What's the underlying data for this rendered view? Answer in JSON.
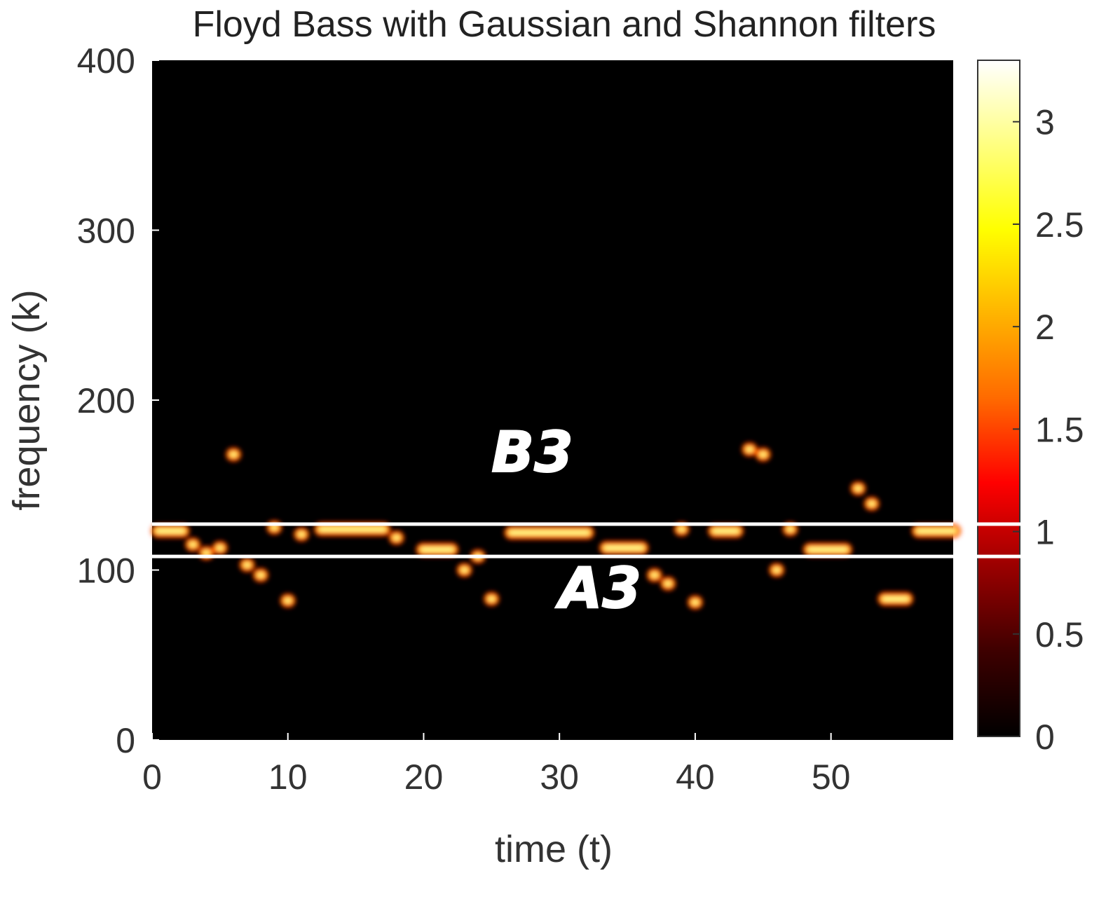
{
  "chart_data": {
    "type": "heatmap",
    "title": "Floyd Bass with Gaussian and Shannon filters",
    "xlabel": "time (t)",
    "ylabel": "frequency (k)",
    "xlim": [
      0,
      59
    ],
    "ylim": [
      0,
      400
    ],
    "xticks": [
      "0",
      "10",
      "20",
      "30",
      "40",
      "50"
    ],
    "yticks": [
      "0",
      "100",
      "200",
      "300",
      "400"
    ],
    "colorbar": {
      "colormap": "hot",
      "range": [
        0,
        3.3
      ],
      "ticks": [
        "0",
        "0.5",
        "1",
        "1.5",
        "2",
        "2.5",
        "3"
      ],
      "colors": [
        "#000000",
        "#3d0000",
        "#990000",
        "#ff0000",
        "#ff6a00",
        "#ffb400",
        "#ffff00",
        "#ffff80",
        "#ffffff"
      ]
    },
    "background_color": "#000000",
    "hot_spots": [
      {
        "t": 0.5,
        "k": 123,
        "t2": 2.2
      },
      {
        "t": 3,
        "k": 115
      },
      {
        "t": 4,
        "k": 110
      },
      {
        "t": 5,
        "k": 113
      },
      {
        "t": 6,
        "k": 168
      },
      {
        "t": 7,
        "k": 103
      },
      {
        "t": 8,
        "k": 97
      },
      {
        "t": 9,
        "k": 125
      },
      {
        "t": 10,
        "k": 82
      },
      {
        "t": 11,
        "k": 121
      },
      {
        "t": 12.5,
        "k": 124,
        "t2": 17
      },
      {
        "t": 18,
        "k": 119
      },
      {
        "t": 20,
        "k": 112,
        "t2": 22
      },
      {
        "t": 23,
        "k": 100
      },
      {
        "t": 24,
        "k": 108
      },
      {
        "t": 25,
        "k": 83
      },
      {
        "t": 26.5,
        "k": 122,
        "t2": 32
      },
      {
        "t": 33.5,
        "k": 113,
        "t2": 36
      },
      {
        "t": 37,
        "k": 97
      },
      {
        "t": 38,
        "k": 92
      },
      {
        "t": 39,
        "k": 124
      },
      {
        "t": 40,
        "k": 81
      },
      {
        "t": 41.5,
        "k": 123,
        "t2": 43
      },
      {
        "t": 44,
        "k": 171
      },
      {
        "t": 45,
        "k": 168
      },
      {
        "t": 46,
        "k": 100
      },
      {
        "t": 47,
        "k": 124
      },
      {
        "t": 48.5,
        "k": 112,
        "t2": 51
      },
      {
        "t": 52,
        "k": 148
      },
      {
        "t": 53,
        "k": 139
      },
      {
        "t": 54,
        "k": 83,
        "t2": 55.5
      },
      {
        "t": 56.5,
        "k": 123,
        "t2": 59
      }
    ],
    "reference_lines": [
      {
        "k": 127,
        "color": "#ffffff"
      },
      {
        "k": 108,
        "color": "#ffffff"
      }
    ],
    "annotations": [
      {
        "text": "B3",
        "t": 28,
        "k": 158
      },
      {
        "text": "A3",
        "t": 33,
        "k": 78
      }
    ]
  }
}
